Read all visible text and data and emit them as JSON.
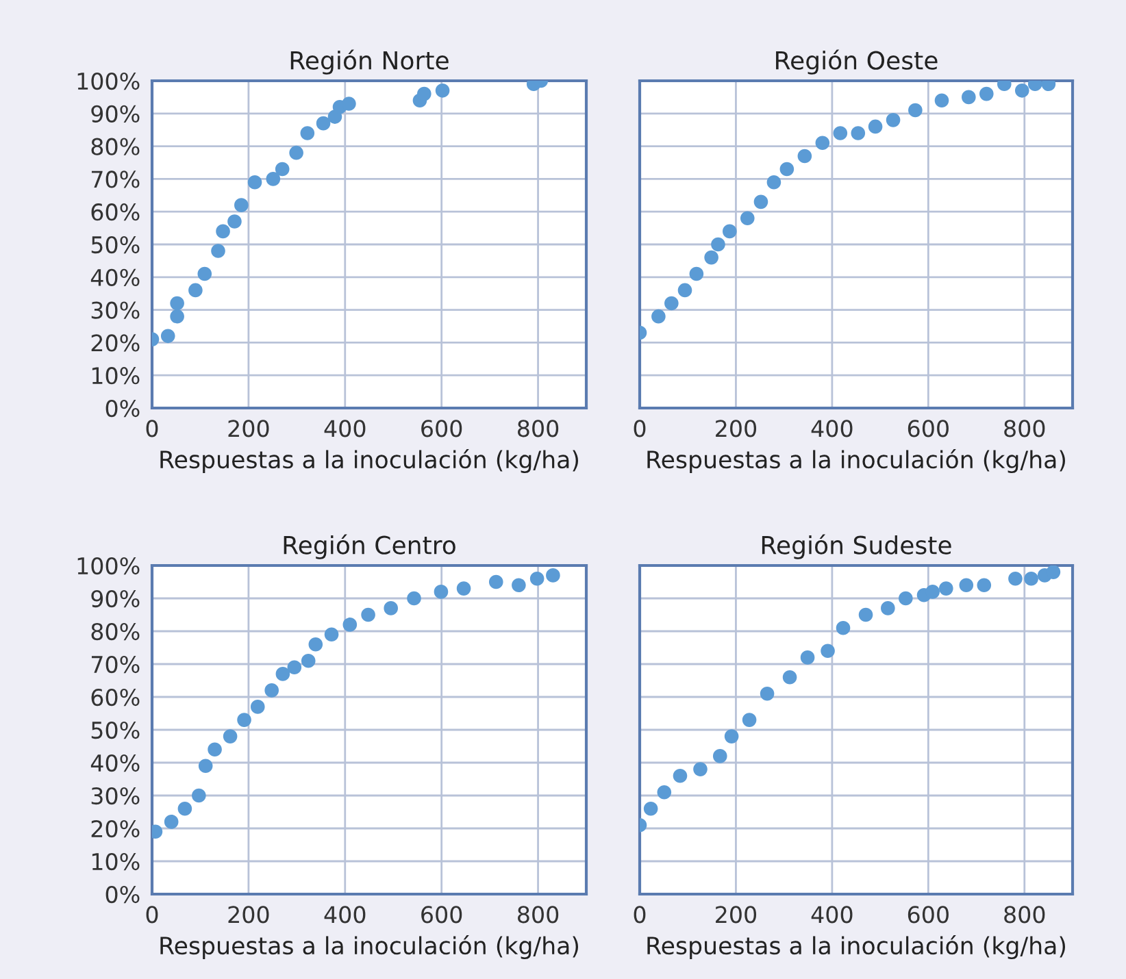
{
  "chart_data": [
    {
      "type": "scatter",
      "title": "Región Norte",
      "xlabel": "Respuestas a la inoculación (kg/ha)",
      "color": "#5b9bd5",
      "marker": "circle",
      "grid": true,
      "xlim": [
        0,
        900
      ],
      "xticks": [
        0,
        200,
        400,
        600,
        800
      ],
      "ylim": [
        0,
        100
      ],
      "yticks": [
        {
          "value": 0,
          "label": "0%"
        },
        {
          "value": 10,
          "label": "10%"
        },
        {
          "value": 20,
          "label": "20%"
        },
        {
          "value": 30,
          "label": "30%"
        },
        {
          "value": 40,
          "label": "40%"
        },
        {
          "value": 50,
          "label": "50%"
        },
        {
          "value": 60,
          "label": "60%"
        },
        {
          "value": 70,
          "label": "70%"
        },
        {
          "value": 80,
          "label": "80%"
        },
        {
          "value": 90,
          "label": "90%"
        },
        {
          "value": 100,
          "label": "100%"
        }
      ],
      "x": [
        0,
        33,
        52,
        52,
        90,
        109,
        137,
        147,
        171,
        185,
        213,
        251,
        270,
        299,
        322,
        355,
        379,
        389,
        408,
        555,
        564,
        602,
        791,
        806
      ],
      "values": [
        21,
        22,
        28,
        32,
        36,
        41,
        48,
        54,
        57,
        62,
        69,
        70,
        73,
        78,
        84,
        87,
        89,
        92,
        93,
        94,
        96,
        97,
        99,
        100
      ]
    },
    {
      "type": "scatter",
      "title": "Región Oeste",
      "xlabel": "Respuestas a la inoculación (kg/ha)",
      "color": "#5b9bd5",
      "marker": "circle",
      "grid": true,
      "tick_labels": "x",
      "xlim": [
        0,
        900
      ],
      "xticks": [
        0,
        200,
        400,
        600,
        800
      ],
      "ylim": [
        0,
        100
      ],
      "yticks": [
        0,
        10,
        20,
        30,
        40,
        50,
        60,
        70,
        80,
        90,
        100
      ],
      "x": [
        0,
        39,
        66,
        94,
        118,
        149,
        163,
        187,
        224,
        252,
        279,
        306,
        343,
        380,
        417,
        454,
        490,
        527,
        573,
        628,
        684,
        721,
        758,
        795,
        822,
        850
      ],
      "values": [
        23,
        28,
        32,
        36,
        41,
        46,
        50,
        54,
        58,
        63,
        69,
        73,
        77,
        81,
        84,
        84,
        86,
        88,
        91,
        94,
        95,
        96,
        99,
        97,
        99,
        99
      ]
    },
    {
      "type": "scatter",
      "title": "Región Centro",
      "xlabel": "Respuestas a la inoculación (kg/ha)",
      "color": "#5b9bd5",
      "marker": "circle",
      "grid": true,
      "xlim": [
        0,
        900
      ],
      "xticks": [
        0,
        200,
        400,
        600,
        800
      ],
      "ylim": [
        0,
        100
      ],
      "yticks": [
        {
          "value": 0,
          "label": "0%"
        },
        {
          "value": 10,
          "label": "10%"
        },
        {
          "value": 20,
          "label": "20%"
        },
        {
          "value": 30,
          "label": "30%"
        },
        {
          "value": 40,
          "label": "40%"
        },
        {
          "value": 50,
          "label": "50%"
        },
        {
          "value": 60,
          "label": "60%"
        },
        {
          "value": 70,
          "label": "70%"
        },
        {
          "value": 80,
          "label": "80%"
        },
        {
          "value": 90,
          "label": "90%"
        },
        {
          "value": 100,
          "label": "100%"
        }
      ],
      "x": [
        7,
        40,
        68,
        97,
        111,
        130,
        162,
        191,
        219,
        248,
        271,
        295,
        324,
        339,
        372,
        410,
        448,
        495,
        543,
        599,
        646,
        713,
        760,
        798,
        831
      ],
      "values": [
        19,
        22,
        26,
        30,
        39,
        44,
        48,
        53,
        57,
        62,
        67,
        69,
        71,
        76,
        79,
        82,
        85,
        87,
        90,
        92,
        93,
        95,
        94,
        96,
        97
      ]
    },
    {
      "type": "scatter",
      "title": "Región Sudeste",
      "xlabel": "Respuestas a la inoculación (kg/ha)",
      "color": "#5b9bd5",
      "marker": "circle",
      "grid": true,
      "tick_labels": "x",
      "xlim": [
        0,
        900
      ],
      "xticks": [
        0,
        200,
        400,
        600,
        800
      ],
      "ylim": [
        0,
        100
      ],
      "yticks": [
        0,
        10,
        20,
        30,
        40,
        50,
        60,
        70,
        80,
        90,
        100
      ],
      "x": [
        0,
        23,
        51,
        84,
        126,
        167,
        191,
        228,
        265,
        312,
        349,
        391,
        423,
        470,
        516,
        553,
        591,
        609,
        637,
        679,
        716,
        781,
        814,
        842,
        860
      ],
      "values": [
        21,
        26,
        31,
        36,
        38,
        42,
        48,
        53,
        61,
        66,
        72,
        74,
        81,
        85,
        87,
        90,
        91,
        92,
        93,
        94,
        94,
        96,
        96,
        97,
        98
      ]
    }
  ]
}
